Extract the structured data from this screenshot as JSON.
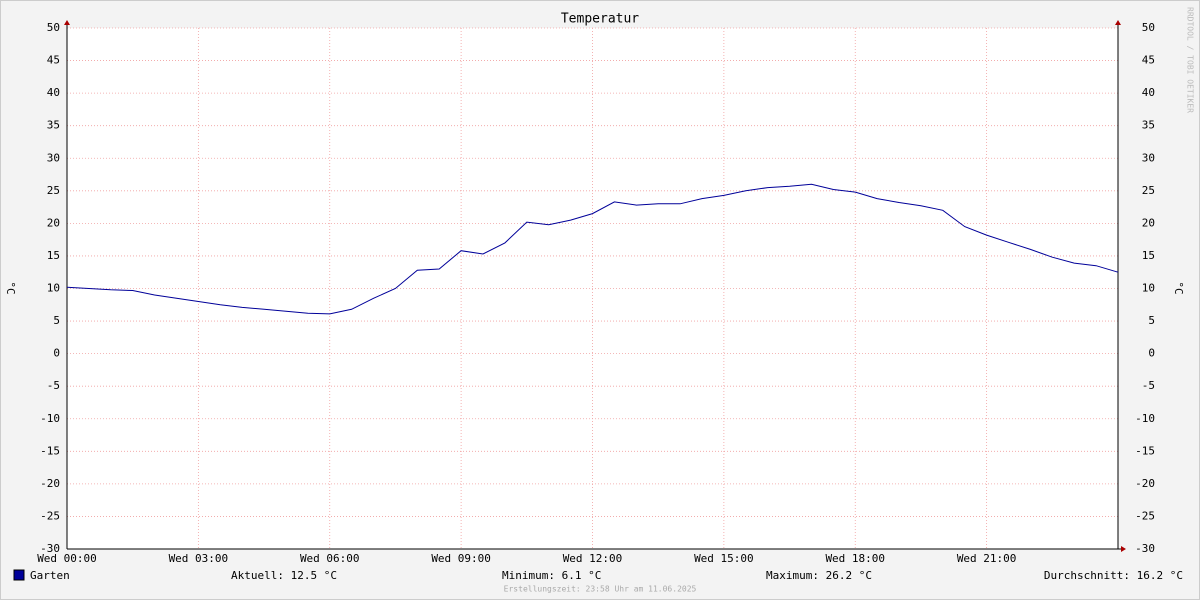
{
  "chart_data": {
    "type": "line",
    "title": "Temperatur",
    "ylabel": "°C",
    "y2label": "°C",
    "x": [
      0,
      0.5,
      1,
      1.5,
      2,
      2.5,
      3,
      3.5,
      4,
      4.5,
      5,
      5.5,
      6,
      6.5,
      7,
      7.5,
      8,
      8.5,
      9,
      9.5,
      10,
      10.5,
      11,
      11.5,
      12,
      12.5,
      13,
      13.5,
      14,
      14.5,
      15,
      15.5,
      16,
      16.5,
      17,
      17.5,
      18,
      18.5,
      19,
      19.5,
      20,
      20.5,
      21,
      21.5,
      22,
      22.5,
      23,
      23.5,
      24
    ],
    "series": [
      {
        "name": "Garten",
        "color": "#000099",
        "values": [
          10.2,
          10.0,
          9.8,
          9.7,
          9.0,
          8.5,
          8.0,
          7.5,
          7.1,
          6.8,
          6.5,
          6.2,
          6.1,
          6.8,
          8.5,
          10.0,
          12.8,
          13.0,
          15.8,
          15.3,
          17.0,
          20.2,
          19.8,
          20.5,
          21.5,
          23.3,
          22.8,
          23.0,
          23.0,
          23.8,
          24.3,
          25.0,
          25.5,
          25.7,
          26.0,
          25.2,
          24.8,
          23.8,
          23.2,
          22.7,
          22.0,
          19.5,
          18.2,
          17.1,
          16.0,
          14.8,
          13.9,
          13.5,
          12.5
        ]
      }
    ],
    "xlim": [
      0,
      24
    ],
    "xticks": [
      {
        "value": 0,
        "label": "Wed 00:00"
      },
      {
        "value": 3,
        "label": "Wed 03:00"
      },
      {
        "value": 6,
        "label": "Wed 06:00"
      },
      {
        "value": 9,
        "label": "Wed 09:00"
      },
      {
        "value": 12,
        "label": "Wed 12:00"
      },
      {
        "value": 15,
        "label": "Wed 15:00"
      },
      {
        "value": 18,
        "label": "Wed 18:00"
      },
      {
        "value": 21,
        "label": "Wed 21:00"
      }
    ],
    "ylim": [
      -30,
      50
    ],
    "yticks": [
      -30,
      -25,
      -20,
      -15,
      -10,
      -5,
      0,
      5,
      10,
      15,
      20,
      25,
      30,
      35,
      40,
      45,
      50
    ],
    "y2lim": [
      -30,
      50
    ],
    "y2ticks": [
      -30,
      -25,
      -20,
      -15,
      -10,
      -5,
      0,
      5,
      10,
      15,
      20,
      25,
      30,
      35,
      40,
      45,
      50
    ],
    "grid": true,
    "legend_stats": [
      "Aktuell: 12.5 °C",
      "Minimum: 6.1 °C",
      "Maximum: 26.2 °C",
      "Durchschnitt: 16.2 °C"
    ],
    "footer": "Erstellungszeit: 23:58 Uhr am 11.06.2025",
    "watermark": "RRDTOOL / TOBI OETIKER"
  }
}
